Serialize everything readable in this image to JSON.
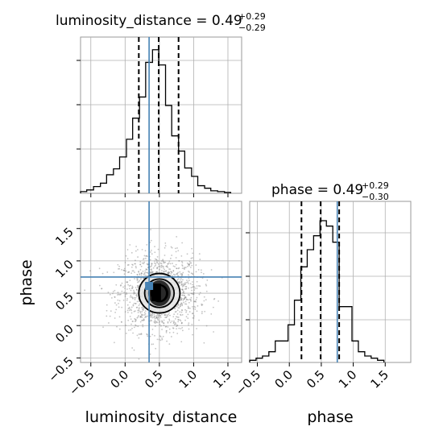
{
  "chart_data": {
    "type": "corner",
    "parameters": [
      "luminosity_distance",
      "phase"
    ],
    "truths": {
      "luminosity_distance": 0.35,
      "phase": 0.75
    },
    "titles": [
      {
        "param": "luminosity_distance",
        "label": "luminosity_distance",
        "median": "0.49",
        "plus": "+0.29",
        "minus": "−0.29"
      },
      {
        "param": "phase",
        "label": "phase",
        "median": "0.49",
        "plus": "+0.29",
        "minus": "−0.30"
      }
    ],
    "quantiles": {
      "luminosity_distance": [
        0.2,
        0.49,
        0.78
      ],
      "phase": [
        0.19,
        0.49,
        0.78
      ]
    },
    "xlim": {
      "luminosity_distance": [
        -0.65,
        1.7
      ],
      "phase": [
        -0.62,
        1.9
      ]
    },
    "ylim_2d": [
      -0.57,
      1.92
    ],
    "ticks": {
      "luminosity_distance": [
        -0.5,
        0.0,
        0.5,
        1.0,
        1.5
      ],
      "phase": [
        -0.5,
        0.0,
        0.5,
        1.0,
        1.5
      ]
    },
    "tick_labels": [
      "−0.5",
      "0.0",
      "0.5",
      "1.0",
      "1.5"
    ],
    "hist_luminosity_distance": {
      "edges": [
        -0.65,
        -0.56,
        -0.46,
        -0.36,
        -0.27,
        -0.17,
        -0.08,
        0.02,
        0.11,
        0.21,
        0.3,
        0.4,
        0.49,
        0.59,
        0.68,
        0.78,
        0.87,
        0.97,
        1.06,
        1.16,
        1.25,
        1.35,
        1.45,
        1.54
      ],
      "counts": [
        2,
        4,
        8,
        12,
        22,
        29,
        43,
        64,
        89,
        114,
        155,
        170,
        152,
        104,
        68,
        50,
        30,
        20,
        9,
        6,
        3,
        2,
        1
      ]
    },
    "hist_phase": {
      "edges": [
        -0.62,
        -0.52,
        -0.42,
        -0.32,
        -0.22,
        -0.12,
        -0.02,
        0.08,
        0.18,
        0.28,
        0.38,
        0.48,
        0.58,
        0.68,
        0.78,
        0.88,
        0.98,
        1.08,
        1.18,
        1.28,
        1.38,
        1.48
      ],
      "counts": [
        2,
        4,
        6,
        10,
        20,
        20,
        35,
        58,
        89,
        105,
        118,
        132,
        127,
        112,
        52,
        52,
        20,
        10,
        6,
        4,
        2
      ],
      "ymax": 150
    },
    "hist_ymax": 185,
    "scatter_2d": {
      "center": [
        0.5,
        0.5
      ],
      "sigma": [
        0.29,
        0.3
      ],
      "n_points": 1500
    },
    "contours_2d": [
      {
        "level": "outer",
        "rx": 0.6,
        "ry": 0.61
      },
      {
        "level": "middle",
        "rx": 0.43,
        "ry": 0.44
      },
      {
        "level": "inner",
        "rx": 0.24,
        "ry": 0.26
      }
    ],
    "marker_2d": [
      0.35,
      0.75
    ],
    "xlabel_left": "luminosity_distance",
    "xlabel_right": "phase",
    "ylabel_left": "phase",
    "colors": {
      "truth": "#4682b4",
      "hist": "#000000",
      "grid": "#b0b0b0",
      "points": "#7f7f7f"
    }
  }
}
